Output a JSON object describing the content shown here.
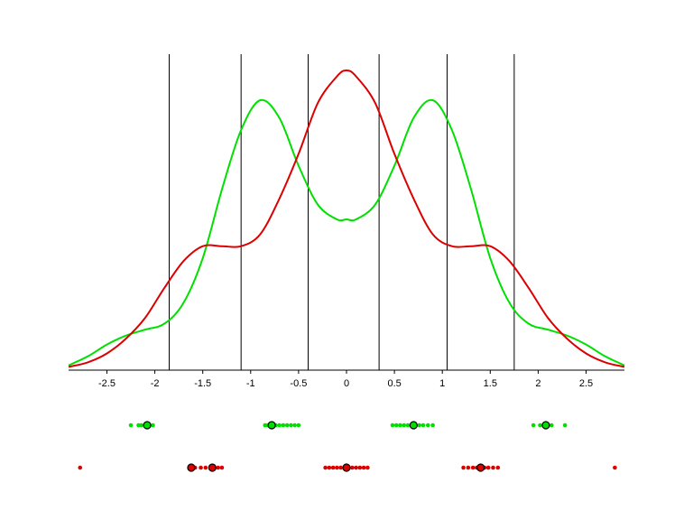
{
  "chart_data": {
    "type": "line",
    "title": "",
    "xlabel": "",
    "ylabel": "",
    "xlim": [
      -2.9,
      2.9
    ],
    "ylim": [
      0,
      1.0
    ],
    "x_ticks": [
      -2.5,
      -2,
      -1.5,
      -1,
      -0.5,
      0,
      0.5,
      1,
      1.5,
      2,
      2.5
    ],
    "x_tick_labels": [
      "-2.5",
      "-2",
      "-1.5",
      "-1",
      "-0.5",
      "0",
      "0.5",
      "1",
      "1.5",
      "2",
      "2.5"
    ],
    "y_axis_visible": false,
    "grid": false,
    "legend": "none",
    "vertical_lines": [
      -1.85,
      -1.1,
      -0.4,
      0.34,
      1.05,
      1.75
    ],
    "series": [
      {
        "color": "#00e000",
        "x": [
          -2.9,
          -2.7,
          -2.5,
          -2.3,
          -2.1,
          -1.9,
          -1.7,
          -1.5,
          -1.3,
          -1.1,
          -0.9,
          -0.7,
          -0.5,
          -0.3,
          -0.1,
          0,
          0.1,
          0.3,
          0.5,
          0.7,
          0.9,
          1.1,
          1.3,
          1.5,
          1.7,
          1.9,
          2.1,
          2.3,
          2.5,
          2.7,
          2.9
        ],
        "y": [
          0.01,
          0.04,
          0.08,
          0.11,
          0.13,
          0.15,
          0.22,
          0.37,
          0.6,
          0.8,
          0.9,
          0.84,
          0.68,
          0.55,
          0.5,
          0.5,
          0.5,
          0.55,
          0.68,
          0.84,
          0.9,
          0.8,
          0.6,
          0.37,
          0.22,
          0.15,
          0.13,
          0.11,
          0.08,
          0.04,
          0.01
        ]
      },
      {
        "color": "#dd0000",
        "x": [
          -2.9,
          -2.7,
          -2.5,
          -2.3,
          -2.1,
          -1.9,
          -1.7,
          -1.5,
          -1.3,
          -1.1,
          -0.9,
          -0.7,
          -0.5,
          -0.3,
          -0.1,
          0,
          0.1,
          0.3,
          0.5,
          0.7,
          0.9,
          1.1,
          1.3,
          1.5,
          1.7,
          1.9,
          2.1,
          2.3,
          2.5,
          2.7,
          2.9
        ],
        "y": [
          0.005,
          0.02,
          0.05,
          0.1,
          0.17,
          0.27,
          0.36,
          0.41,
          0.41,
          0.41,
          0.45,
          0.57,
          0.72,
          0.89,
          0.98,
          1.0,
          0.98,
          0.89,
          0.72,
          0.57,
          0.45,
          0.41,
          0.41,
          0.41,
          0.36,
          0.27,
          0.17,
          0.1,
          0.05,
          0.02,
          0.005
        ]
      }
    ],
    "point_rows": [
      {
        "color": "#00e000",
        "points": [
          -2.25,
          -2.17,
          -2.14,
          -2.1,
          -2.06,
          -2.02,
          -0.85,
          -0.82,
          -0.78,
          -0.74,
          -0.7,
          -0.66,
          -0.62,
          -0.58,
          -0.54,
          -0.5,
          0.48,
          0.52,
          0.56,
          0.6,
          0.64,
          0.68,
          0.72,
          0.76,
          0.8,
          0.85,
          0.9,
          1.95,
          2.02,
          2.06,
          2.1,
          2.14,
          2.28
        ],
        "markers": [
          -2.08,
          -0.78,
          0.7,
          2.08
        ]
      },
      {
        "color": "#dd0000",
        "points": [
          -2.78,
          -1.62,
          -1.58,
          -1.52,
          -1.47,
          -1.42,
          -1.38,
          -1.34,
          -1.3,
          -0.22,
          -0.18,
          -0.14,
          -0.1,
          -0.06,
          -0.02,
          0.02,
          0.06,
          0.1,
          0.14,
          0.18,
          0.22,
          1.22,
          1.27,
          1.32,
          1.36,
          1.4,
          1.44,
          1.48,
          1.53,
          1.58,
          2.8
        ],
        "markers": [
          -1.62,
          -1.4,
          0,
          1.4
        ]
      }
    ]
  }
}
